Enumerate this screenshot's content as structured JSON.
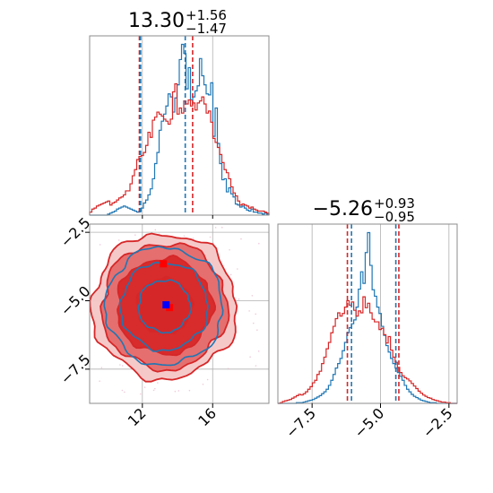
{
  "chart_data": {
    "type": "corner",
    "colors": {
      "red": "#d62728",
      "blue": "#1f77b4",
      "red_fill_light": "#f0a0a0",
      "red_fill_mid": "#e46a6a",
      "marker_red": "#ff0000",
      "marker_blue": "#0000ff"
    },
    "param1": {
      "title": {
        "median": "13.30",
        "plus": "+1.56",
        "minus": "−1.47"
      },
      "range": [
        9.0,
        19.2
      ],
      "ticks": [
        12,
        16
      ],
      "tick_labels": [
        "12",
        "16"
      ],
      "histograms": {
        "blue": {
          "bins": [
            9.0,
            19.2
          ],
          "counts": [
            0,
            0,
            0,
            0,
            0,
            0,
            0,
            0,
            1,
            2,
            3,
            4,
            6,
            7,
            8,
            9,
            8,
            7,
            6,
            5,
            4,
            3,
            4,
            7,
            12,
            15,
            20,
            26,
            36,
            51,
            62,
            84,
            93,
            100,
            108,
            120,
            117,
            102,
            116,
            129,
            154,
            169,
            160,
            125,
            146,
            114,
            117,
            123,
            128,
            155,
            138,
            129,
            120,
            119,
            131,
            78,
            106,
            71,
            51,
            35,
            36,
            23,
            27,
            21,
            18,
            11,
            10,
            8,
            9,
            7,
            5,
            4,
            6,
            3,
            3,
            2,
            2,
            1,
            2,
            1
          ]
        },
        "red": {
          "bins": [
            9.0,
            19.2
          ],
          "counts": [
            3,
            6,
            7,
            9,
            10,
            11,
            12,
            13,
            14,
            10,
            12,
            13,
            15,
            17,
            18,
            20,
            24,
            24,
            31,
            39,
            45,
            55,
            58,
            59,
            62,
            69,
            82,
            77,
            94,
            97,
            102,
            100,
            98,
            95,
            93,
            90,
            95,
            122,
            130,
            100,
            106,
            101,
            113,
            110,
            114,
            108,
            111,
            104,
            111,
            113,
            117,
            110,
            101,
            103,
            92,
            76,
            72,
            67,
            60,
            52,
            45,
            42,
            36,
            28,
            22,
            19,
            14,
            10,
            11,
            10,
            9,
            7,
            8,
            6,
            5,
            4,
            4,
            4,
            3,
            2
          ]
        }
      },
      "quantiles": {
        "red": [
          11.83,
          13.3,
          14.86
        ],
        "blue": [
          11.9,
          13.3,
          14.44
        ]
      }
    },
    "param2": {
      "title": {
        "median": "−5.26",
        "plus": "+0.93",
        "minus": "−0.95"
      },
      "range": [
        -8.75,
        -2.2
      ],
      "ticks": [
        -7.5,
        -5.0,
        -2.5
      ],
      "tick_labels": [
        "−7.5",
        "−5.0",
        "−2.5"
      ],
      "histograms": {
        "blue": {
          "bins": [
            -8.75,
            -2.2
          ],
          "counts": [
            0,
            0,
            0,
            0,
            0,
            0,
            0,
            0,
            1,
            1,
            1,
            2,
            3,
            4,
            5,
            6,
            8,
            10,
            12,
            15,
            18,
            22,
            28,
            36,
            45,
            55,
            62,
            70,
            82,
            95,
            110,
            118,
            124,
            130,
            150,
            178,
            205,
            187,
            235,
            266,
            215,
            177,
            167,
            150,
            140,
            120,
            106,
            90,
            80,
            70,
            62,
            55,
            48,
            42,
            36,
            28,
            22,
            18,
            14,
            11,
            9,
            7,
            5,
            4,
            3,
            2,
            1,
            1,
            1,
            0,
            0,
            0,
            0,
            0,
            0,
            0,
            0,
            0
          ]
        },
        "red": {
          "bins": [
            -8.75,
            -2.2
          ],
          "counts": [
            0,
            1,
            3,
            4,
            5,
            6,
            8,
            10,
            12,
            14,
            13,
            15,
            18,
            22,
            26,
            32,
            36,
            45,
            50,
            62,
            72,
            85,
            95,
            110,
            120,
            132,
            141,
            136,
            140,
            150,
            160,
            153,
            158,
            145,
            136,
            144,
            141,
            166,
            149,
            156,
            141,
            131,
            127,
            127,
            115,
            117,
            107,
            94,
            104,
            83,
            72,
            64,
            56,
            48,
            43,
            40,
            38,
            35,
            31,
            27,
            23,
            19,
            16,
            13,
            11,
            9,
            8,
            6,
            5,
            4,
            3,
            2,
            2,
            1,
            1,
            0,
            0,
            0
          ]
        }
      },
      "quantiles": {
        "red": [
          -6.21,
          -5.26,
          -4.33
        ],
        "blue": [
          -6.06,
          -5.18,
          -4.44
        ]
      }
    },
    "joint": {
      "markers": [
        {
          "color": "red",
          "x": 13.2,
          "y": -3.65
        },
        {
          "color": "red",
          "x": 13.55,
          "y": -5.25
        },
        {
          "color": "blue",
          "x": 13.35,
          "y": -5.15
        }
      ],
      "contour_center": {
        "x": 13.25,
        "y": -5.2
      },
      "contour_sigma": {
        "x": 1.55,
        "y": 1.0
      },
      "contour_levels": [
        1.0,
        1.75,
        2.3,
        2.65
      ]
    }
  }
}
